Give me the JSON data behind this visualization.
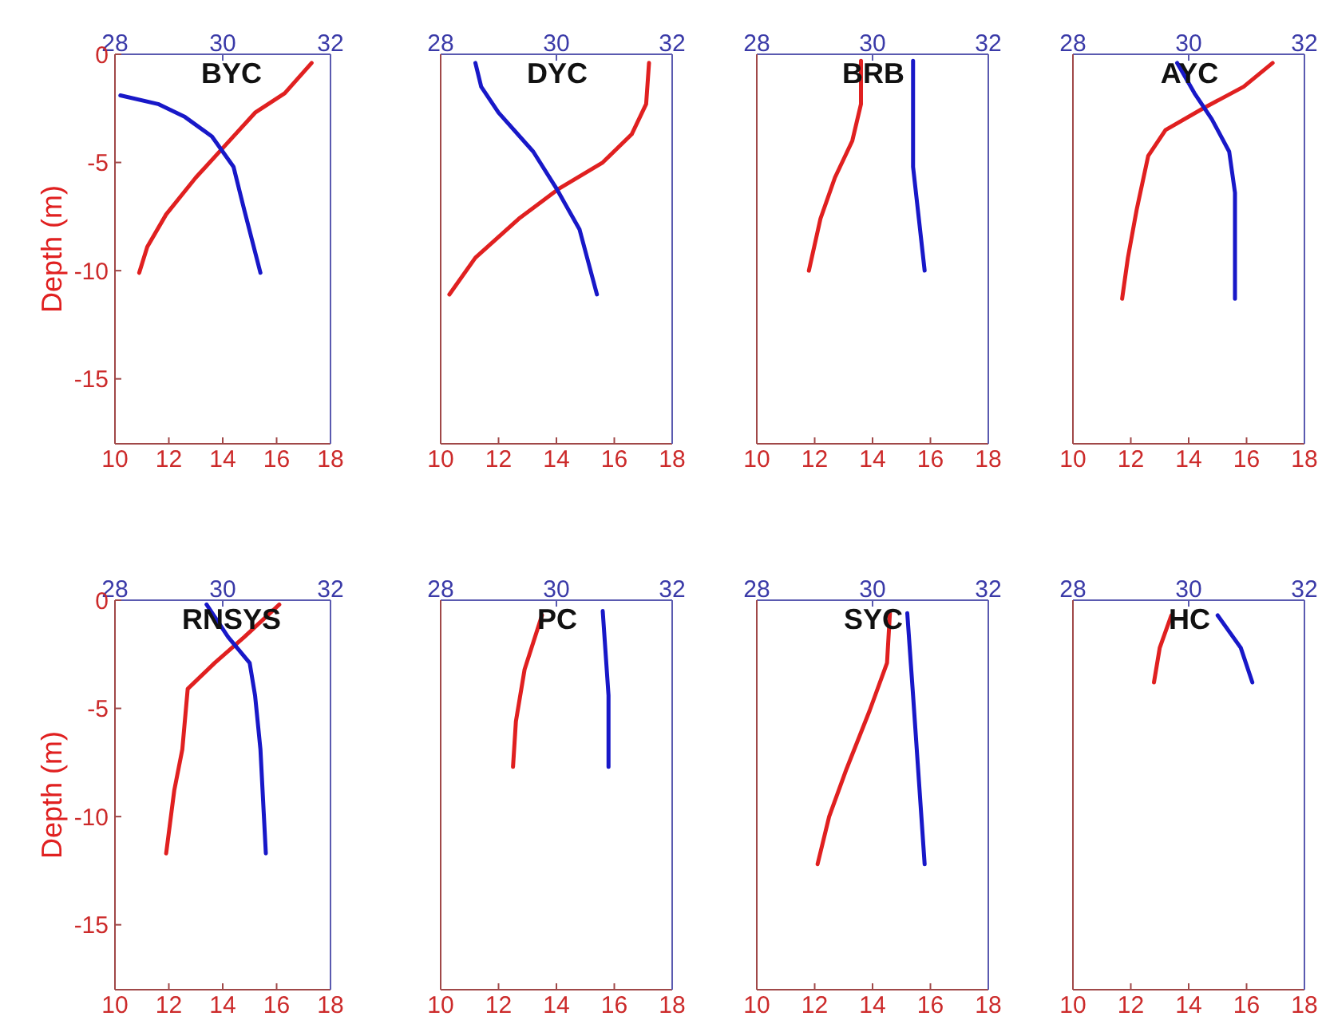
{
  "chart_data": [
    {
      "type": "line",
      "title": "BYC",
      "ylabel": "Depth (m)",
      "xlim": [
        10,
        18
      ],
      "xticks": [
        10,
        12,
        14,
        16,
        18
      ],
      "x2lim": [
        28,
        32
      ],
      "x2ticks": [
        28,
        30,
        32
      ],
      "ylim": [
        -18,
        0
      ],
      "yticks": [
        -15,
        -10,
        -5,
        0
      ],
      "series": [
        {
          "color": "#e02020",
          "x": [
            17.3,
            16.3,
            15.2,
            14.1,
            13.0,
            11.9,
            11.2,
            10.9
          ],
          "values": [
            -0.4,
            -1.8,
            -2.7,
            -4.2,
            -5.7,
            -7.4,
            -8.9,
            -10.1
          ]
        },
        {
          "color": "#1818c8",
          "axis": "x2",
          "x": [
            28.1,
            28.8,
            29.3,
            29.8,
            30.2,
            30.4,
            30.7
          ],
          "values": [
            -1.9,
            -2.3,
            -2.9,
            -3.8,
            -5.2,
            -7.2,
            -10.1
          ]
        }
      ]
    },
    {
      "type": "line",
      "title": "DYC",
      "tick_labels": "x",
      "xlim": [
        10,
        18
      ],
      "xticks": [
        10,
        12,
        14,
        16,
        18
      ],
      "x2lim": [
        28,
        32
      ],
      "x2ticks": [
        28,
        30,
        32
      ],
      "ylim": [
        -18,
        0
      ],
      "yticks": [
        -15,
        -10,
        -5,
        0
      ],
      "series": [
        {
          "color": "#e02020",
          "x": [
            17.2,
            17.1,
            16.6,
            15.6,
            14.1,
            12.7,
            11.2,
            10.3
          ],
          "values": [
            -0.4,
            -2.3,
            -3.7,
            -5.0,
            -6.2,
            -7.6,
            -9.4,
            -11.1
          ]
        },
        {
          "color": "#1818c8",
          "axis": "x2",
          "x": [
            28.6,
            28.7,
            29.0,
            29.6,
            30.0,
            30.4,
            30.7
          ],
          "values": [
            -0.4,
            -1.5,
            -2.7,
            -4.5,
            -6.2,
            -8.1,
            -11.1
          ]
        }
      ]
    },
    {
      "type": "line",
      "title": "BRB",
      "tick_labels": "x",
      "xlim": [
        10,
        18
      ],
      "xticks": [
        10,
        12,
        14,
        16,
        18
      ],
      "x2lim": [
        28,
        32
      ],
      "x2ticks": [
        28,
        30,
        32
      ],
      "ylim": [
        -18,
        0
      ],
      "yticks": [
        -15,
        -10,
        -5,
        0
      ],
      "series": [
        {
          "color": "#e02020",
          "x": [
            13.6,
            13.6,
            13.3,
            12.7,
            12.2,
            11.8
          ],
          "values": [
            -0.3,
            -2.3,
            -4.0,
            -5.7,
            -7.6,
            -10.0
          ]
        },
        {
          "color": "#1818c8",
          "axis": "x2",
          "x": [
            30.7,
            30.7,
            30.8,
            30.9
          ],
          "values": [
            -0.3,
            -5.2,
            -7.6,
            -10.0
          ]
        }
      ]
    },
    {
      "type": "line",
      "title": "AYC",
      "tick_labels": "x",
      "xlim": [
        10,
        18
      ],
      "xticks": [
        10,
        12,
        14,
        16,
        18
      ],
      "x2lim": [
        28,
        32
      ],
      "x2ticks": [
        28,
        30,
        32
      ],
      "ylim": [
        -18,
        0
      ],
      "yticks": [
        -15,
        -10,
        -5,
        0
      ],
      "series": [
        {
          "color": "#e02020",
          "x": [
            16.9,
            15.9,
            14.5,
            13.2,
            12.6,
            12.2,
            11.9,
            11.7
          ],
          "values": [
            -0.4,
            -1.5,
            -2.5,
            -3.5,
            -4.7,
            -7.2,
            -9.4,
            -11.3
          ]
        },
        {
          "color": "#1818c8",
          "axis": "x2",
          "x": [
            29.8,
            30.1,
            30.4,
            30.7,
            30.8,
            30.8
          ],
          "values": [
            -0.4,
            -1.8,
            -3.0,
            -4.5,
            -6.4,
            -11.3
          ]
        }
      ]
    },
    {
      "type": "line",
      "title": "RNSYS",
      "ylabel": "Depth (m)",
      "xlim": [
        10,
        18
      ],
      "xticks": [
        10,
        12,
        14,
        16,
        18
      ],
      "x2lim": [
        28,
        32
      ],
      "x2ticks": [
        28,
        30,
        32
      ],
      "ylim": [
        -18,
        0
      ],
      "yticks": [
        -15,
        -10,
        -5,
        0
      ],
      "series": [
        {
          "color": "#e02020",
          "x": [
            16.1,
            14.8,
            13.7,
            12.7,
            12.5,
            12.2,
            11.9
          ],
          "values": [
            -0.2,
            -1.7,
            -2.9,
            -4.1,
            -6.9,
            -8.8,
            -11.7
          ]
        },
        {
          "color": "#1818c8",
          "axis": "x2",
          "x": [
            29.7,
            30.1,
            30.5,
            30.6,
            30.7,
            30.8
          ],
          "values": [
            -0.2,
            -1.7,
            -2.9,
            -4.4,
            -6.9,
            -11.7
          ]
        }
      ]
    },
    {
      "type": "line",
      "title": "PC",
      "tick_labels": "x",
      "xlim": [
        10,
        18
      ],
      "xticks": [
        10,
        12,
        14,
        16,
        18
      ],
      "x2lim": [
        28,
        32
      ],
      "x2ticks": [
        28,
        30,
        32
      ],
      "ylim": [
        -18,
        0
      ],
      "yticks": [
        -15,
        -10,
        -5,
        0
      ],
      "series": [
        {
          "color": "#e02020",
          "x": [
            13.5,
            12.9,
            12.6,
            12.5
          ],
          "values": [
            -0.7,
            -3.2,
            -5.6,
            -7.7
          ]
        },
        {
          "color": "#1818c8",
          "axis": "x2",
          "x": [
            30.8,
            30.9,
            30.9
          ],
          "values": [
            -0.5,
            -4.4,
            -7.7
          ]
        }
      ]
    },
    {
      "type": "line",
      "title": "SYC",
      "tick_labels": "x",
      "xlim": [
        10,
        18
      ],
      "xticks": [
        10,
        12,
        14,
        16,
        18
      ],
      "x2lim": [
        28,
        32
      ],
      "x2ticks": [
        28,
        30,
        32
      ],
      "ylim": [
        -18,
        0
      ],
      "yticks": [
        -15,
        -10,
        -5,
        0
      ],
      "series": [
        {
          "color": "#e02020",
          "x": [
            14.6,
            14.5,
            13.9,
            13.1,
            12.5,
            12.1
          ],
          "values": [
            -0.6,
            -2.9,
            -5.1,
            -7.8,
            -10.0,
            -12.2
          ]
        },
        {
          "color": "#1818c8",
          "axis": "x2",
          "x": [
            30.6,
            30.7,
            30.9
          ],
          "values": [
            -0.6,
            -4.4,
            -12.2
          ]
        }
      ]
    },
    {
      "type": "line",
      "title": "HC",
      "tick_labels": "x",
      "xlim": [
        10,
        18
      ],
      "xticks": [
        10,
        12,
        14,
        16,
        18
      ],
      "x2lim": [
        28,
        32
      ],
      "x2ticks": [
        28,
        30,
        32
      ],
      "ylim": [
        -18,
        0
      ],
      "yticks": [
        -15,
        -10,
        -5,
        0
      ],
      "series": [
        {
          "color": "#e02020",
          "x": [
            13.4,
            13.0,
            12.8
          ],
          "values": [
            -0.7,
            -2.2,
            -3.8
          ]
        },
        {
          "color": "#1818c8",
          "axis": "x2",
          "x": [
            30.5,
            30.9,
            31.1
          ],
          "values": [
            -0.7,
            -2.2,
            -3.8
          ]
        }
      ]
    }
  ]
}
